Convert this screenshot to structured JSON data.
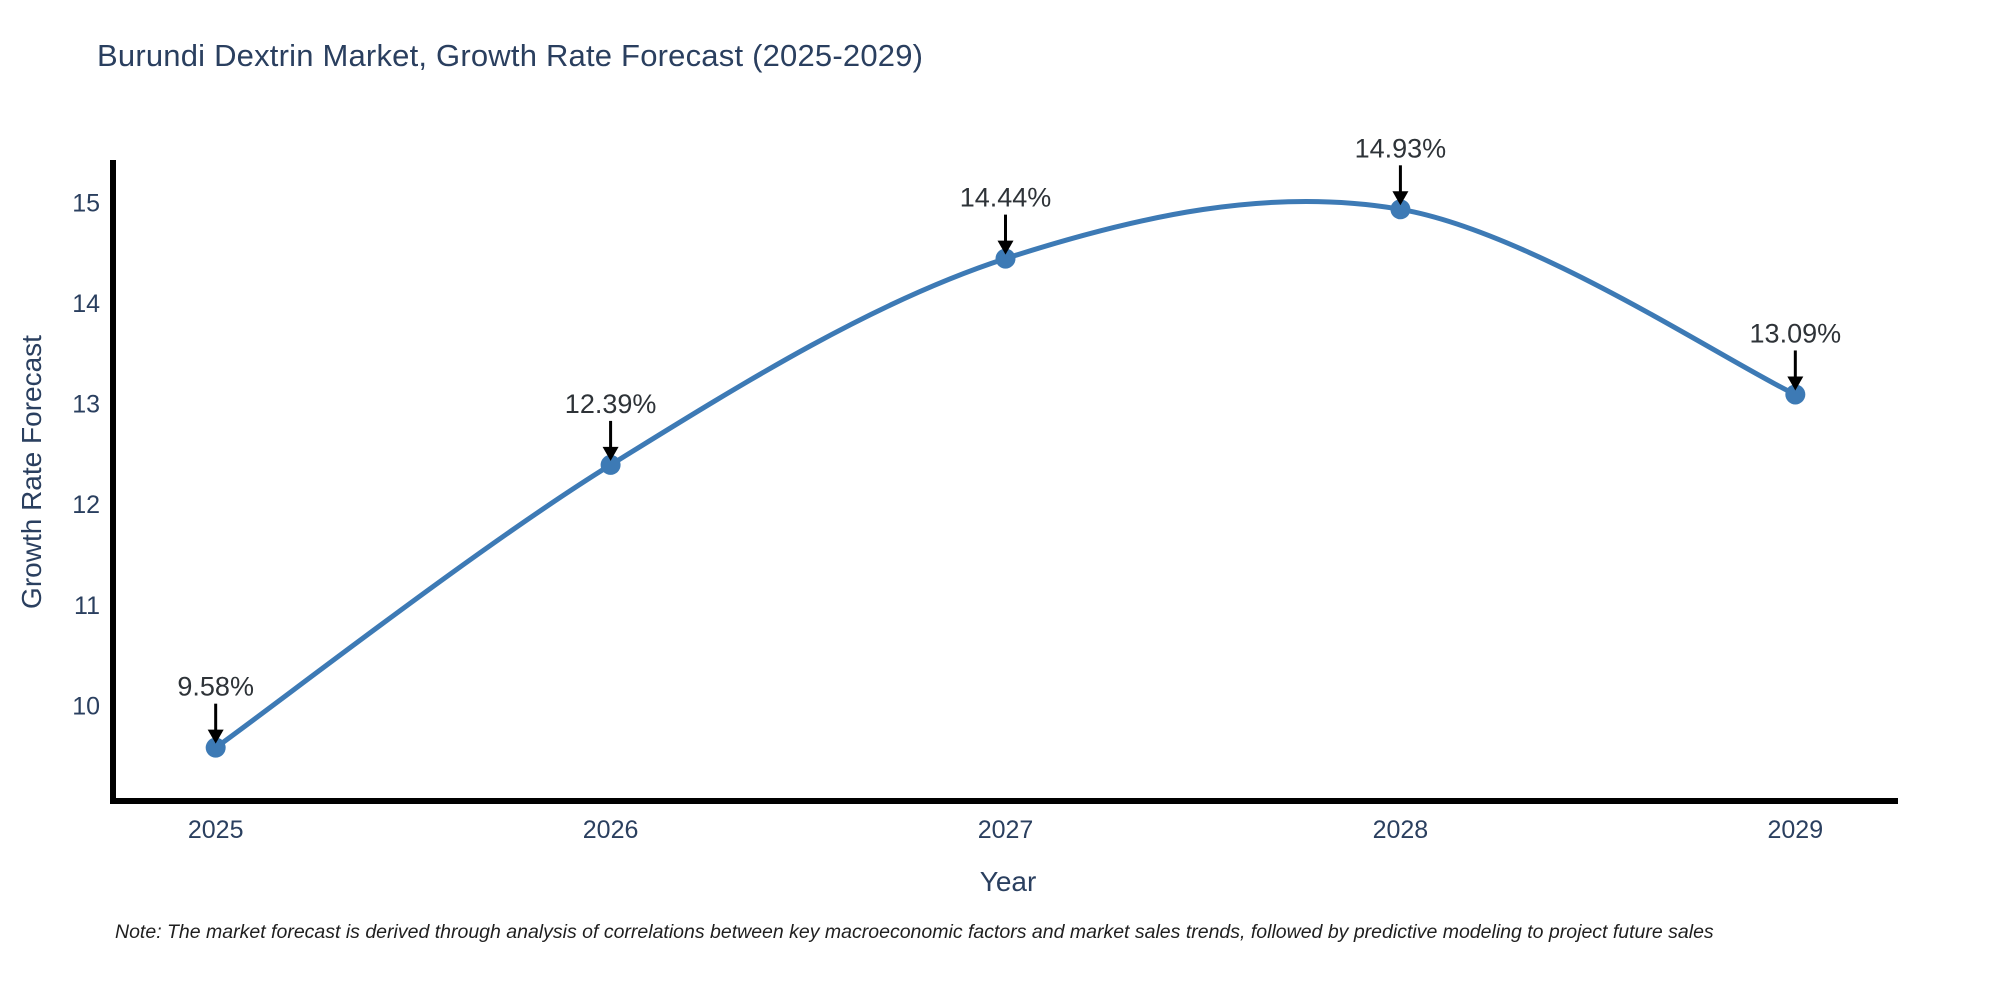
{
  "title": "Burundi Dextrin Market, Growth Rate Forecast (2025-2029)",
  "note": "Note: The market forecast is derived through analysis of correlations between key macroeconomic factors and market sales trends, followed by predictive modeling to project future sales",
  "chart_data": {
    "type": "line",
    "title": "Burundi Dextrin Market, Growth Rate Forecast (2025-2029)",
    "x": [
      2025,
      2026,
      2027,
      2028,
      2029
    ],
    "xtick_labels": [
      "2025",
      "2026",
      "2027",
      "2028",
      "2029"
    ],
    "series": [
      {
        "name": "Growth Rate Forecast",
        "values": [
          9.58,
          12.39,
          14.44,
          14.93,
          13.09
        ],
        "point_labels": [
          "9.58%",
          "12.39%",
          "14.44%",
          "14.93%",
          "13.09%"
        ]
      }
    ],
    "xlabel": "Year",
    "ylabel": "Growth Rate Forecast",
    "yticks": [
      10,
      11,
      12,
      13,
      14,
      15
    ],
    "xlim": [
      2024.74,
      2029.26
    ],
    "ylim": [
      9.05,
      15.42
    ],
    "line_shape": "spline",
    "grid": false,
    "legend": "none",
    "annotation_style": "value label with downward arrow to each point",
    "colors": {
      "line": "#3d7ab5",
      "marker": "#3d7ab5",
      "annotation_arrow": "#000000",
      "axis_spine": "#000000",
      "tick_text": "#2a3f5f",
      "title_text": "#2a3f5f",
      "note_text": "#1f1f1f",
      "background": "#ffffff"
    }
  }
}
